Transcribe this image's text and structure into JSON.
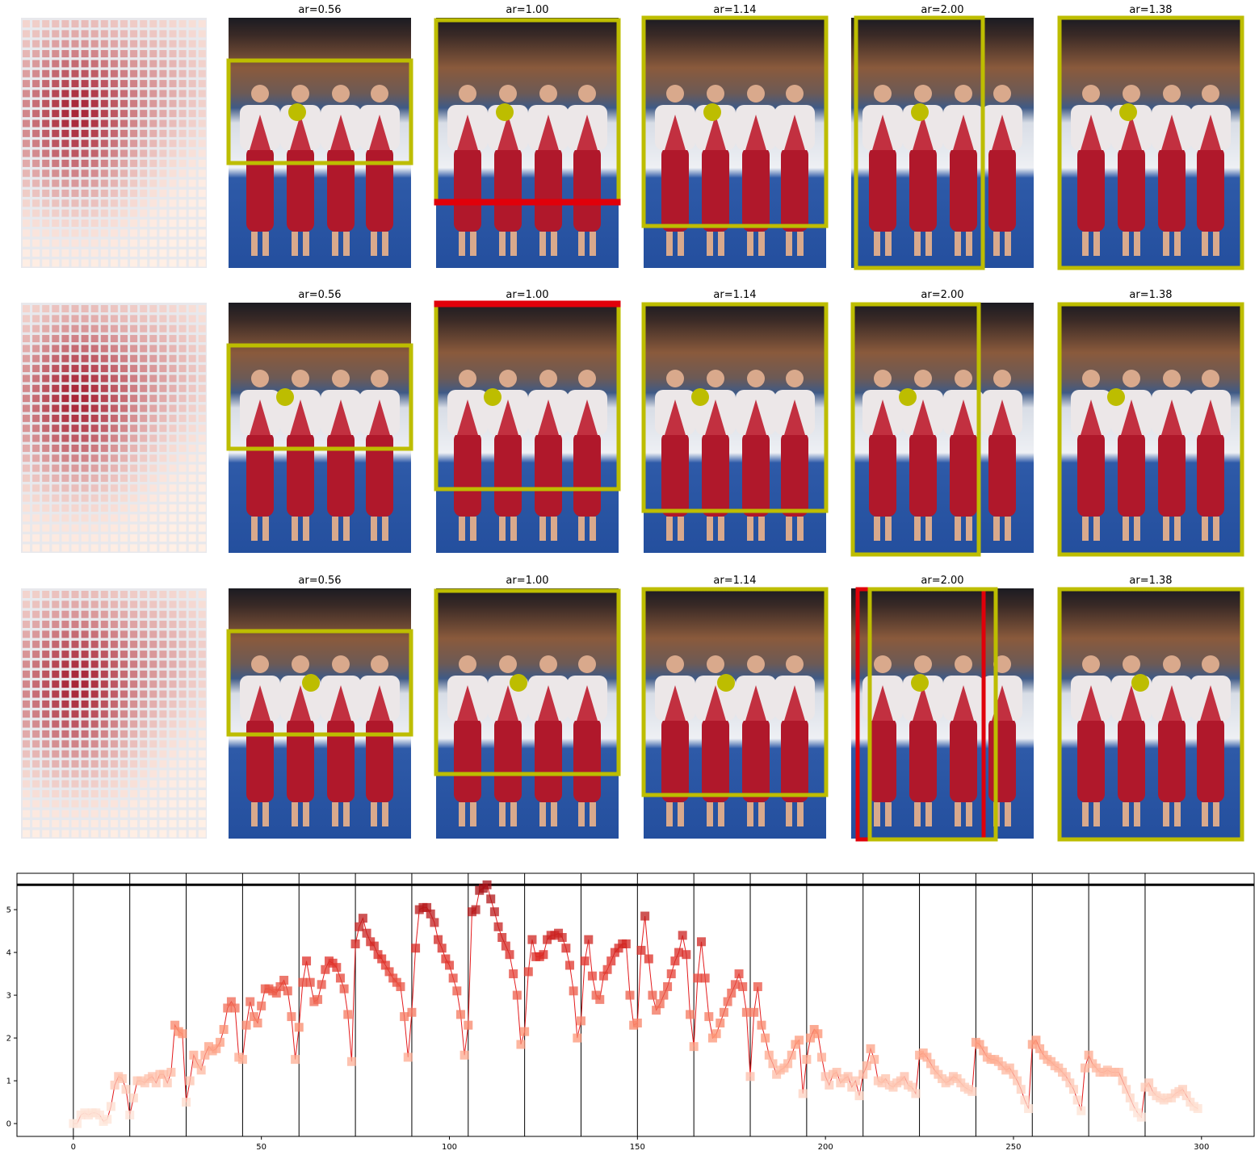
{
  "panels": [
    {
      "titles": [
        "ar=0.56",
        "ar=1.00",
        "ar=1.14",
        "ar=2.00",
        "ar=1.38"
      ]
    },
    {
      "titles": [
        "ar=0.56",
        "ar=1.00",
        "ar=1.14",
        "ar=2.00",
        "ar=1.38"
      ]
    },
    {
      "titles": [
        "ar=0.56",
        "ar=1.00",
        "ar=1.14",
        "ar=2.00",
        "ar=1.38"
      ]
    }
  ],
  "chart_data": {
    "type": "line",
    "color": "#e31a1c",
    "marker": "square",
    "colormap": "Reds",
    "x": [
      0,
      1,
      2,
      3,
      4,
      5,
      6,
      7,
      8,
      9,
      10,
      11,
      12,
      13,
      14,
      15,
      16,
      17,
      18,
      19,
      20,
      21,
      22,
      23,
      24,
      25,
      26,
      27,
      28,
      29,
      30,
      31,
      32,
      33,
      34,
      35,
      36,
      37,
      38,
      39,
      40,
      41,
      42,
      43,
      44,
      45,
      46,
      47,
      48,
      49,
      50,
      51,
      52,
      53,
      54,
      55,
      56,
      57,
      58,
      59,
      60,
      61,
      62,
      63,
      64,
      65,
      66,
      67,
      68,
      69,
      70,
      71,
      72,
      73,
      74,
      75,
      76,
      77,
      78,
      79,
      80,
      81,
      82,
      83,
      84,
      85,
      86,
      87,
      88,
      89,
      90,
      91,
      92,
      93,
      94,
      95,
      96,
      97,
      98,
      99,
      100,
      101,
      102,
      103,
      104,
      105,
      106,
      107,
      108,
      109,
      110,
      111,
      112,
      113,
      114,
      115,
      116,
      117,
      118,
      119,
      120,
      121,
      122,
      123,
      124,
      125,
      126,
      127,
      128,
      129,
      130,
      131,
      132,
      133,
      134,
      135,
      136,
      137,
      138,
      139,
      140,
      141,
      142,
      143,
      144,
      145,
      146,
      147,
      148,
      149,
      150,
      151,
      152,
      153,
      154,
      155,
      156,
      157,
      158,
      159,
      160,
      161,
      162,
      163,
      164,
      165,
      166,
      167,
      168,
      169,
      170,
      171,
      172,
      173,
      174,
      175,
      176,
      177,
      178,
      179,
      180,
      181,
      182,
      183,
      184,
      185,
      186,
      187,
      188,
      189,
      190,
      191,
      192,
      193,
      194,
      195,
      196,
      197,
      198,
      199,
      200,
      201,
      202,
      203,
      204,
      205,
      206,
      207,
      208,
      209,
      210,
      211,
      212,
      213,
      214,
      215,
      216,
      217,
      218,
      219,
      220,
      221,
      222,
      223,
      224,
      225,
      226,
      227,
      228,
      229,
      230,
      231,
      232,
      233,
      234,
      235,
      236,
      237,
      238,
      239,
      240,
      241,
      242,
      243,
      244,
      245,
      246,
      247,
      248,
      249,
      250,
      251,
      252,
      253,
      254,
      255,
      256,
      257,
      258,
      259,
      260,
      261,
      262,
      263,
      264,
      265,
      266,
      267,
      268,
      269,
      270,
      271,
      272,
      273,
      274,
      275,
      276,
      277,
      278,
      279,
      280,
      281,
      282,
      283,
      284,
      285,
      286,
      287,
      288,
      289,
      290,
      291,
      292,
      293,
      294,
      295,
      296,
      297,
      298,
      299
    ],
    "values": [
      0,
      0,
      0.2,
      0.25,
      0.2,
      0.25,
      0.25,
      0.2,
      0.05,
      0.1,
      0.4,
      0.9,
      1.1,
      1.05,
      0.8,
      0.2,
      0.6,
      1.0,
      1.0,
      0.95,
      1.05,
      1.1,
      0.95,
      1.15,
      1.15,
      0.95,
      1.2,
      2.3,
      2.15,
      2.1,
      0.5,
      1.0,
      1.6,
      1.4,
      1.25,
      1.6,
      1.8,
      1.7,
      1.75,
      1.9,
      2.2,
      2.7,
      2.85,
      2.7,
      1.55,
      1.5,
      2.3,
      2.85,
      2.5,
      2.35,
      2.75,
      3.15,
      3.15,
      3.1,
      3.05,
      3.2,
      3.35,
      3.1,
      2.5,
      1.5,
      2.25,
      3.3,
      3.8,
      3.3,
      2.85,
      2.9,
      3.25,
      3.6,
      3.8,
      3.75,
      3.65,
      3.4,
      3.15,
      2.55,
      1.45,
      4.2,
      4.6,
      4.8,
      4.45,
      4.25,
      4.15,
      3.95,
      3.85,
      3.7,
      3.55,
      3.4,
      3.3,
      3.2,
      2.5,
      1.55,
      2.6,
      4.1,
      5.0,
      5.05,
      5.05,
      4.9,
      4.7,
      4.3,
      4.1,
      3.85,
      3.7,
      3.4,
      3.1,
      2.55,
      1.6,
      2.3,
      4.95,
      5.0,
      5.45,
      5.5,
      5.58,
      5.25,
      4.95,
      4.6,
      4.35,
      4.15,
      3.95,
      3.5,
      3.0,
      1.85,
      2.15,
      3.55,
      4.3,
      3.9,
      3.9,
      3.95,
      4.3,
      4.4,
      4.4,
      4.45,
      4.35,
      4.1,
      3.7,
      3.1,
      2.0,
      2.4,
      3.8,
      4.3,
      3.45,
      3.0,
      2.9,
      3.45,
      3.6,
      3.8,
      4.0,
      4.1,
      4.2,
      4.2,
      3.0,
      2.3,
      2.35,
      4.05,
      4.85,
      3.85,
      3.0,
      2.65,
      2.8,
      3.0,
      3.2,
      3.5,
      3.8,
      4.0,
      4.4,
      3.95,
      2.55,
      1.8,
      3.4,
      4.25,
      3.4,
      2.5,
      2.0,
      2.1,
      2.35,
      2.6,
      2.85,
      3.05,
      3.25,
      3.5,
      3.2,
      2.6,
      1.1,
      2.6,
      3.2,
      2.3,
      2.0,
      1.6,
      1.4,
      1.15,
      1.25,
      1.3,
      1.4,
      1.6,
      1.85,
      1.95,
      0.7,
      1.5,
      2.0,
      2.2,
      2.1,
      1.55,
      1.1,
      0.9,
      1.15,
      1.2,
      0.95,
      1.05,
      1.1,
      0.85,
      1.0,
      0.65,
      1.15,
      1.35,
      1.75,
      1.5,
      1.0,
      0.95,
      1.05,
      0.9,
      0.85,
      0.95,
      1.0,
      1.1,
      0.9,
      0.85,
      0.7,
      1.6,
      1.65,
      1.55,
      1.4,
      1.25,
      1.15,
      1.05,
      0.95,
      1.0,
      1.1,
      1.05,
      0.95,
      0.85,
      0.8,
      0.75,
      1.9,
      1.85,
      1.7,
      1.55,
      1.5,
      1.5,
      1.45,
      1.35,
      1.25,
      1.3,
      1.15,
      1.0,
      0.8,
      0.55,
      0.35,
      1.85,
      1.95,
      1.75,
      1.6,
      1.5,
      1.45,
      1.35,
      1.3,
      1.2,
      1.1,
      0.95,
      0.8,
      0.55,
      0.3,
      1.3,
      1.6,
      1.4,
      1.3,
      1.2,
      1.2,
      1.25,
      1.2,
      1.2,
      1.2,
      1.0,
      0.8,
      0.6,
      0.4,
      0.25,
      0.15,
      0.85,
      0.95,
      0.75,
      0.65,
      0.6,
      0.55,
      0.6,
      0.6,
      0.7,
      0.75,
      0.8,
      0.65,
      0.5,
      0.4,
      0.35
    ],
    "vlines": [
      0,
      15,
      30,
      45,
      60,
      75,
      90,
      105,
      120,
      135,
      150,
      165,
      180,
      195,
      210,
      225,
      240,
      255,
      270,
      285
    ],
    "hline": 5.58,
    "xlim": [
      -15,
      314
    ],
    "ylim": [
      -0.3,
      5.85
    ],
    "xticks": [
      0,
      50,
      100,
      150,
      200,
      250,
      300
    ],
    "yticks": [
      0,
      1,
      2,
      3,
      4,
      5
    ]
  }
}
